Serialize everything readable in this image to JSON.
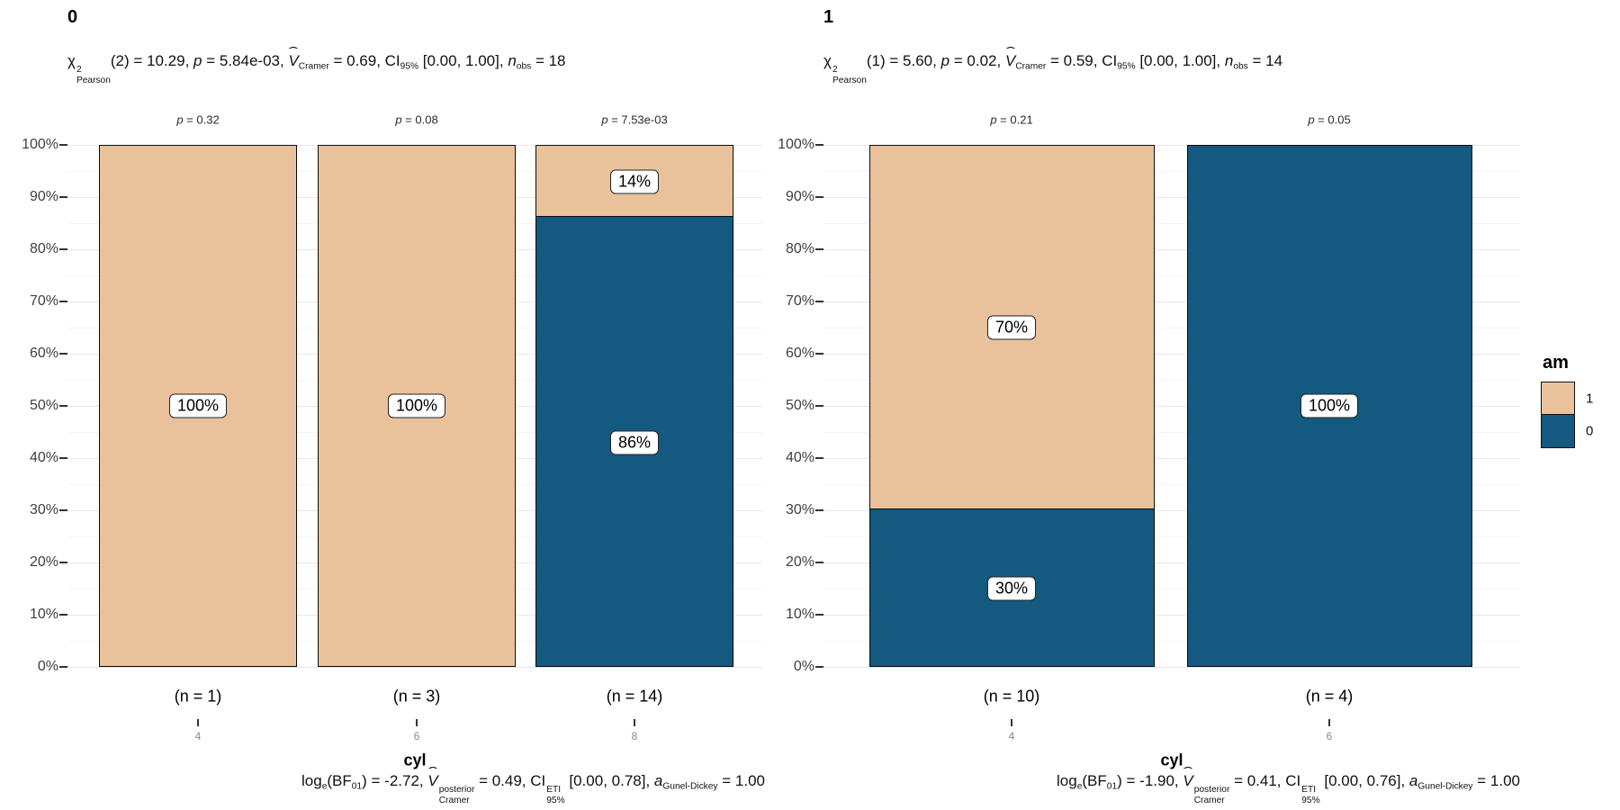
{
  "legend": {
    "title": "am",
    "items": [
      {
        "label": "1",
        "color": "#E9C29C"
      },
      {
        "label": "0",
        "color": "#14597F"
      }
    ]
  },
  "y_axis": {
    "tick_labels": [
      "0%",
      "10%",
      "20%",
      "30%",
      "40%",
      "50%",
      "60%",
      "70%",
      "80%",
      "90%",
      "100%"
    ]
  },
  "chart_data": [
    {
      "type": "bar",
      "stacked": true,
      "unit": "percent",
      "facet_label": "0",
      "xlabel": "cyl",
      "ylim": [
        0,
        100
      ],
      "categories": [
        "4",
        "6",
        "8"
      ],
      "series": [
        {
          "name": "1",
          "values": [
            100,
            100,
            14
          ]
        },
        {
          "name": "0",
          "values": [
            0,
            0,
            86
          ]
        }
      ],
      "bars": [
        {
          "category": "4",
          "n_label": "(n = 1)",
          "p_label": "p = 0.32",
          "segments": [
            {
              "series": "1",
              "pct": 100,
              "label": "100%"
            }
          ]
        },
        {
          "category": "6",
          "n_label": "(n = 3)",
          "p_label": "p = 0.08",
          "segments": [
            {
              "series": "1",
              "pct": 100,
              "label": "100%"
            }
          ]
        },
        {
          "category": "8",
          "n_label": "(n = 14)",
          "p_label": "p = 7.53e-03",
          "segments": [
            {
              "series": "1",
              "pct": 14,
              "label": "14%"
            },
            {
              "series": "0",
              "pct": 86,
              "label": "86%"
            }
          ]
        }
      ],
      "subtitle_segments": [
        {
          "t": "χ",
          "sup": "2",
          "sub": "Pearson",
          "stack": true
        },
        {
          "t": "(2) = 10.29, "
        },
        {
          "t": "p",
          "i": true
        },
        {
          "t": " = 5.84e-03, "
        },
        {
          "t": "V",
          "i": true,
          "hat": true,
          "sub": "Cramer"
        },
        {
          "t": " = 0.69, CI",
          "sub": "95%"
        },
        {
          "t": " [0.00, 1.00], "
        },
        {
          "t": "n",
          "i": true,
          "sub": "obs"
        },
        {
          "t": " = 18"
        }
      ],
      "caption_segments": [
        {
          "t": "log",
          "sub": "e"
        },
        {
          "t": "(BF",
          "sub": "01"
        },
        {
          "t": ") = -2.72, "
        },
        {
          "t": "V",
          "i": true,
          "hat": true,
          "sup": "posterior",
          "sub": "Cramer",
          "stack": true
        },
        {
          "t": " = 0.49, CI",
          "sup": "ETI",
          "sub": "95%",
          "stack": true
        },
        {
          "t": " [0.00, 0.78], "
        },
        {
          "t": "a",
          "i": true,
          "sub": "Gunel-Dickey"
        },
        {
          "t": " = 1.00"
        }
      ]
    },
    {
      "type": "bar",
      "stacked": true,
      "unit": "percent",
      "facet_label": "1",
      "xlabel": "cyl",
      "ylim": [
        0,
        100
      ],
      "categories": [
        "4",
        "6"
      ],
      "series": [
        {
          "name": "1",
          "values": [
            70,
            0
          ]
        },
        {
          "name": "0",
          "values": [
            30,
            100
          ]
        }
      ],
      "bars": [
        {
          "category": "4",
          "n_label": "(n = 10)",
          "p_label": "p = 0.21",
          "segments": [
            {
              "series": "1",
              "pct": 70,
              "label": "70%"
            },
            {
              "series": "0",
              "pct": 30,
              "label": "30%"
            }
          ]
        },
        {
          "category": "6",
          "n_label": "(n = 4)",
          "p_label": "p = 0.05",
          "segments": [
            {
              "series": "0",
              "pct": 100,
              "label": "100%"
            }
          ]
        }
      ],
      "subtitle_segments": [
        {
          "t": "χ",
          "sup": "2",
          "sub": "Pearson",
          "stack": true
        },
        {
          "t": "(1) = 5.60, "
        },
        {
          "t": "p",
          "i": true
        },
        {
          "t": " = 0.02, "
        },
        {
          "t": "V",
          "i": true,
          "hat": true,
          "sub": "Cramer"
        },
        {
          "t": " = 0.59, CI",
          "sub": "95%"
        },
        {
          "t": " [0.00, 1.00], "
        },
        {
          "t": "n",
          "i": true,
          "sub": "obs"
        },
        {
          "t": " = 14"
        }
      ],
      "caption_segments": [
        {
          "t": "log",
          "sub": "e"
        },
        {
          "t": "(BF",
          "sub": "01"
        },
        {
          "t": ") = -1.90, "
        },
        {
          "t": "V",
          "i": true,
          "hat": true,
          "sup": "posterior",
          "sub": "Cramer",
          "stack": true
        },
        {
          "t": " = 0.41, CI",
          "sup": "ETI",
          "sub": "95%",
          "stack": true
        },
        {
          "t": " [0.00, 0.76], "
        },
        {
          "t": "a",
          "i": true,
          "sub": "Gunel-Dickey"
        },
        {
          "t": " = 1.00"
        }
      ]
    }
  ]
}
